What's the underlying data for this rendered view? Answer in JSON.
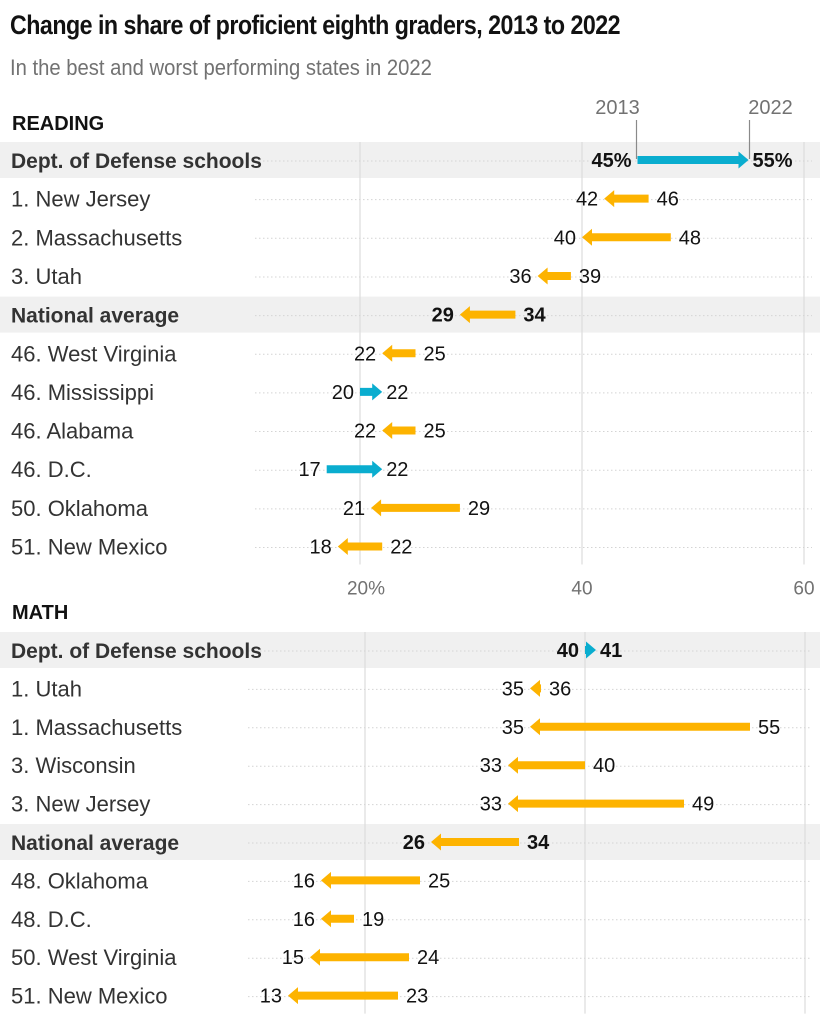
{
  "title": "Change in share of proficient eighth graders, 2013 to 2022",
  "subtitle": "In the best and worst performing states in 2022",
  "colors": {
    "increase": "#0aadcf",
    "decrease": "#fdb300",
    "highlight_band": "#f0f0f0",
    "gridline": "#dddddd",
    "tick_text": "#727272"
  },
  "legend": {
    "start_label": "2013",
    "end_label": "2022"
  },
  "chart_data": [
    {
      "type": "arrow-range",
      "title": "READING",
      "x_ticks": [
        20,
        40,
        60
      ],
      "x_tick_labels": [
        "20%",
        "40",
        "60"
      ],
      "xlim": [
        0,
        62
      ],
      "show_tick_labels": true,
      "show_legend": true,
      "rows": [
        {
          "label": "Dept. of Defense schools",
          "highlight": true,
          "y2013": 45,
          "y2022": 55,
          "label2013": "45%",
          "label2022": "55%"
        },
        {
          "label": "1. New Jersey",
          "highlight": false,
          "y2013": 46,
          "y2022": 42,
          "label2013": "46",
          "label2022": "42"
        },
        {
          "label": "2. Massachusetts",
          "highlight": false,
          "y2013": 48,
          "y2022": 40,
          "label2013": "48",
          "label2022": "40"
        },
        {
          "label": "3. Utah",
          "highlight": false,
          "y2013": 39,
          "y2022": 36,
          "label2013": "39",
          "label2022": "36"
        },
        {
          "label": "National average",
          "highlight": true,
          "y2013": 34,
          "y2022": 29,
          "label2013": "34",
          "label2022": "29"
        },
        {
          "label": "46. West Virginia",
          "highlight": false,
          "y2013": 25,
          "y2022": 22,
          "label2013": "25",
          "label2022": "22"
        },
        {
          "label": "46. Mississippi",
          "highlight": false,
          "y2013": 20,
          "y2022": 22,
          "label2013": "20",
          "label2022": "22"
        },
        {
          "label": "46. Alabama",
          "highlight": false,
          "y2013": 25,
          "y2022": 22,
          "label2013": "25",
          "label2022": "22"
        },
        {
          "label": "46. D.C.",
          "highlight": false,
          "y2013": 17,
          "y2022": 22,
          "label2013": "17",
          "label2022": "22"
        },
        {
          "label": "50. Oklahoma",
          "highlight": false,
          "y2013": 29,
          "y2022": 21,
          "label2013": "29",
          "label2022": "21"
        },
        {
          "label": "51. New Mexico",
          "highlight": false,
          "y2013": 22,
          "y2022": 18,
          "label2013": "22",
          "label2022": "18"
        }
      ]
    },
    {
      "type": "arrow-range",
      "title": "MATH",
      "x_ticks": [
        20,
        40,
        60
      ],
      "x_tick_labels": [],
      "xlim": [
        0,
        62
      ],
      "show_tick_labels": false,
      "show_legend": false,
      "rows": [
        {
          "label": "Dept. of Defense schools",
          "highlight": true,
          "y2013": 40,
          "y2022": 41,
          "label2013": "40",
          "label2022": "41"
        },
        {
          "label": "1. Utah",
          "highlight": false,
          "y2013": 36,
          "y2022": 35,
          "label2013": "36",
          "label2022": "35"
        },
        {
          "label": "1. Massachusetts",
          "highlight": false,
          "y2013": 55,
          "y2022": 35,
          "label2013": "55",
          "label2022": "35"
        },
        {
          "label": "3. Wisconsin",
          "highlight": false,
          "y2013": 40,
          "y2022": 33,
          "label2013": "40",
          "label2022": "33"
        },
        {
          "label": "3. New Jersey",
          "highlight": false,
          "y2013": 49,
          "y2022": 33,
          "label2013": "49",
          "label2022": "33"
        },
        {
          "label": "National average",
          "highlight": true,
          "y2013": 34,
          "y2022": 26,
          "label2013": "34",
          "label2022": "26"
        },
        {
          "label": "48. Oklahoma",
          "highlight": false,
          "y2013": 25,
          "y2022": 16,
          "label2013": "25",
          "label2022": "16"
        },
        {
          "label": "48. D.C.",
          "highlight": false,
          "y2013": 19,
          "y2022": 16,
          "label2013": "19",
          "label2022": "16"
        },
        {
          "label": "50. West Virginia",
          "highlight": false,
          "y2013": 24,
          "y2022": 15,
          "label2013": "24",
          "label2022": "15"
        },
        {
          "label": "51. New Mexico",
          "highlight": false,
          "y2013": 23,
          "y2022": 13,
          "label2013": "23",
          "label2022": "13"
        }
      ]
    }
  ]
}
